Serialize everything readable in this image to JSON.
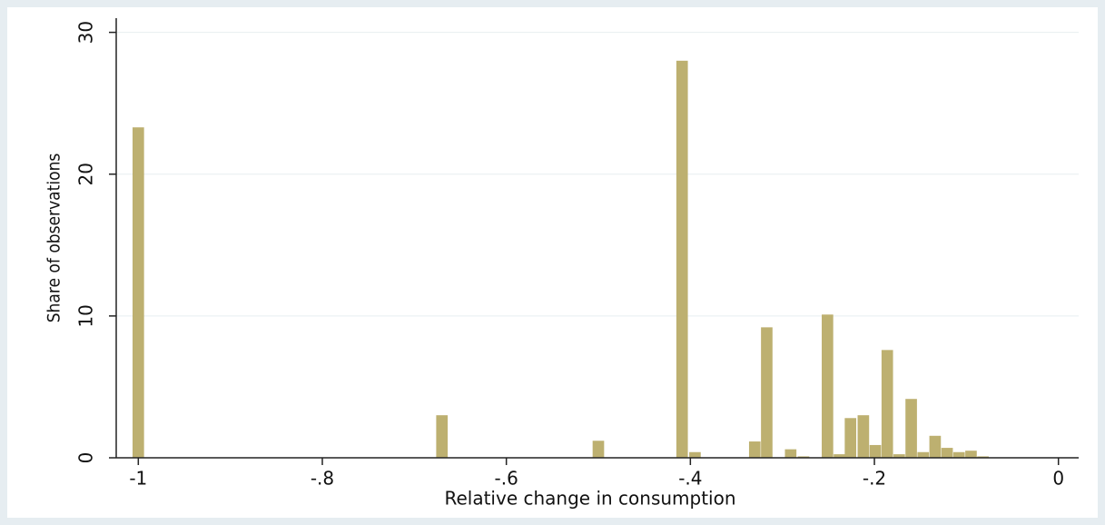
{
  "chart_data": {
    "type": "bar",
    "x_label": "Relative change in consumption",
    "y_label": "Share of observations",
    "x": [
      -1,
      -0.67,
      -0.5,
      -0.409,
      -0.395,
      -0.33,
      -0.317,
      -0.291,
      -0.277,
      -0.251,
      -0.238,
      -0.226,
      -0.212,
      -0.199,
      -0.186,
      -0.173,
      -0.16,
      -0.147,
      -0.134,
      -0.121,
      -0.108,
      -0.095,
      -0.082
    ],
    "values": [
      23.3,
      3.0,
      1.2,
      28.0,
      0.4,
      1.15,
      9.2,
      0.6,
      0.1,
      10.1,
      0.25,
      2.8,
      3.0,
      0.9,
      7.6,
      0.25,
      4.15,
      0.4,
      1.55,
      0.7,
      0.4,
      0.5,
      0.1
    ],
    "color": "#bdb070",
    "xlim": [
      -1.024,
      0.022
    ],
    "ylim": [
      0,
      31
    ],
    "xticks": [
      -1,
      {
        "value": -0.8,
        "label": "-.8"
      },
      {
        "value": -0.6,
        "label": "-.6"
      },
      {
        "value": -0.4,
        "label": "-.4"
      },
      {
        "value": -0.2,
        "label": "-.2"
      },
      0
    ],
    "yticks": [
      0,
      10,
      20,
      30
    ],
    "grid": true
  }
}
